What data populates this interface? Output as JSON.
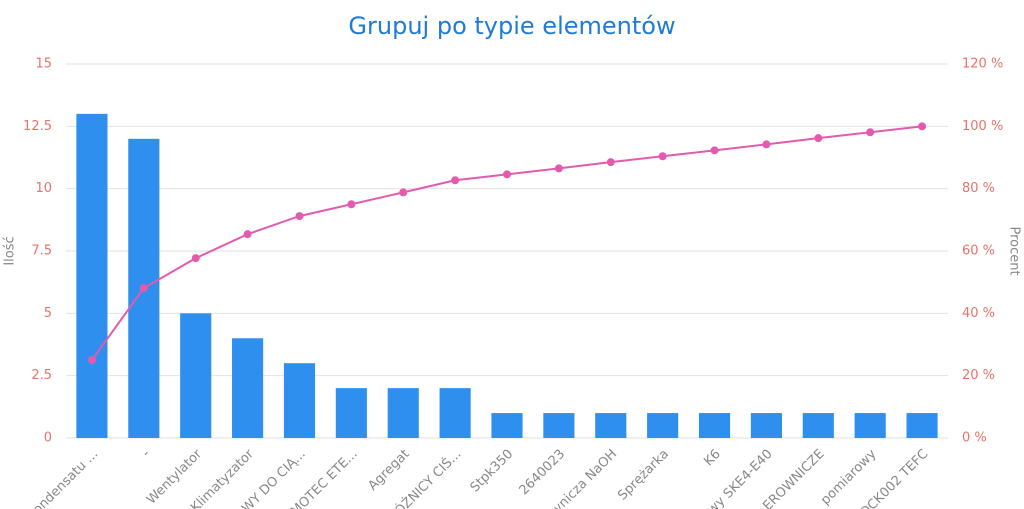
{
  "chart_data": {
    "type": "pareto",
    "title": "Grupuj po typie elementów",
    "categories": [
      "ondensatu ...",
      "-",
      "Wentylator",
      "Klimatyzator",
      "WY DO CIĄ...",
      "MOTEC ETE...",
      "Agregat",
      "ÓŻNICY CIŚ...",
      "Stpk350",
      "2640023",
      "ynicza NaOH",
      "Sprężarka",
      "K6",
      "wy SKE4-E40",
      "EROWNICZE",
      "pomiarowy",
      "OCK002 TEFC"
    ],
    "y_label": "Ilość",
    "y2_label": "Procent",
    "series": [
      {
        "name": "Ilość",
        "color": "#2f8fef",
        "values": [
          13,
          12,
          5,
          4,
          3,
          2,
          2,
          2,
          1,
          1,
          1,
          1,
          1,
          1,
          1,
          1,
          1
        ]
      },
      {
        "name": "Procent",
        "color": "#e35aae",
        "axis": "y2",
        "values": [
          25,
          48.1,
          57.7,
          65.4,
          71.2,
          75,
          78.8,
          82.7,
          84.6,
          86.5,
          88.5,
          90.4,
          92.3,
          94.2,
          96.2,
          98.1,
          100
        ]
      }
    ],
    "ylim": [
      0,
      15
    ],
    "yticks": [
      0,
      2.5,
      5,
      7.5,
      10,
      12.5,
      15
    ],
    "y2lim": [
      0,
      120
    ],
    "y2ticks": [
      {
        "value": 0,
        "label": "0 %"
      },
      {
        "value": 20,
        "label": "20 %"
      },
      {
        "value": 40,
        "label": "40 %"
      },
      {
        "value": 60,
        "label": "60 %"
      },
      {
        "value": 80,
        "label": "80 %"
      },
      {
        "value": 100,
        "label": "100 %"
      },
      {
        "value": 120,
        "label": "120 %"
      }
    ],
    "grid": true
  }
}
